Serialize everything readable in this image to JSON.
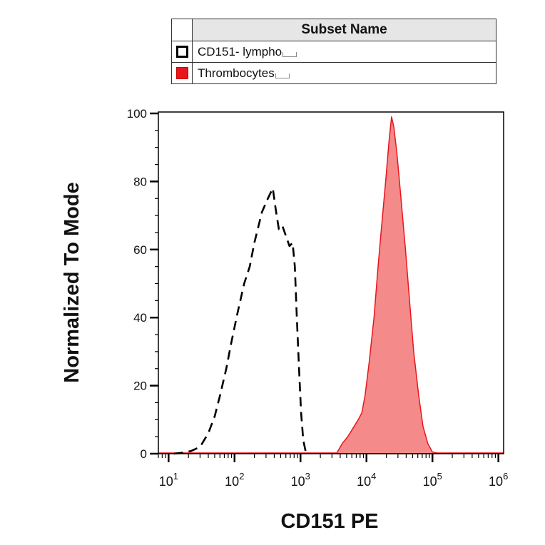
{
  "legend": {
    "header": "Subset Name",
    "items": [
      {
        "label": "CD151- lympho",
        "swatch": "open-square"
      },
      {
        "label": "Thrombocytes",
        "swatch": "red-square"
      }
    ]
  },
  "chart_data": {
    "type": "area",
    "title": "",
    "xlabel": "CD151 PE",
    "ylabel": "Normalized To Mode",
    "xscale": "log",
    "xlim": [
      7,
      1200000
    ],
    "ylim": [
      0,
      100
    ],
    "y_ticks": [
      0,
      20,
      40,
      60,
      80,
      100
    ],
    "x_ticks": [
      {
        "value": 10,
        "base": "10",
        "exp": "1"
      },
      {
        "value": 100,
        "base": "10",
        "exp": "2"
      },
      {
        "value": 1000,
        "base": "10",
        "exp": "3"
      },
      {
        "value": 10000,
        "base": "10",
        "exp": "4"
      },
      {
        "value": 100000,
        "base": "10",
        "exp": "5"
      },
      {
        "value": 1000000,
        "base": "10",
        "exp": "6"
      }
    ],
    "grid": false,
    "legend_position": "top",
    "series": [
      {
        "name": "CD151- lympho",
        "style": "dashed-outline",
        "color": "#000000",
        "points": [
          [
            12,
            0
          ],
          [
            18,
            0.4
          ],
          [
            22,
            0.8
          ],
          [
            30,
            2
          ],
          [
            40,
            6
          ],
          [
            50,
            11
          ],
          [
            60,
            17
          ],
          [
            75,
            25
          ],
          [
            90,
            33
          ],
          [
            110,
            41
          ],
          [
            140,
            50
          ],
          [
            170,
            55
          ],
          [
            200,
            62
          ],
          [
            260,
            71
          ],
          [
            320,
            75
          ],
          [
            380,
            78
          ],
          [
            420,
            72
          ],
          [
            470,
            66
          ],
          [
            530,
            67
          ],
          [
            600,
            64
          ],
          [
            680,
            61
          ],
          [
            760,
            62
          ],
          [
            820,
            55
          ],
          [
            880,
            40
          ],
          [
            950,
            25
          ],
          [
            1020,
            12
          ],
          [
            1100,
            4
          ],
          [
            1200,
            0.5
          ],
          [
            1300,
            0
          ]
        ]
      },
      {
        "name": "Thrombocytes",
        "style": "filled",
        "color": "#e8161b",
        "fill": "#f58a8a",
        "points": [
          [
            3500,
            0
          ],
          [
            4300,
            3
          ],
          [
            5200,
            5
          ],
          [
            6500,
            8
          ],
          [
            7500,
            10
          ],
          [
            8500,
            12
          ],
          [
            9500,
            17
          ],
          [
            11000,
            27
          ],
          [
            13000,
            40
          ],
          [
            15000,
            55
          ],
          [
            17000,
            67
          ],
          [
            19500,
            80
          ],
          [
            22000,
            92
          ],
          [
            24000,
            99
          ],
          [
            26000,
            96
          ],
          [
            29000,
            88
          ],
          [
            33000,
            76
          ],
          [
            39000,
            60
          ],
          [
            45000,
            45
          ],
          [
            52000,
            30
          ],
          [
            62000,
            17
          ],
          [
            72000,
            8
          ],
          [
            85000,
            3
          ],
          [
            100000,
            0.5
          ],
          [
            130000,
            0
          ]
        ]
      }
    ]
  },
  "colors": {
    "thrombocytes_line": "#e8161b",
    "thrombocytes_fill": "#f58a8a",
    "lympho_line": "#000000",
    "axis": "#000000"
  }
}
